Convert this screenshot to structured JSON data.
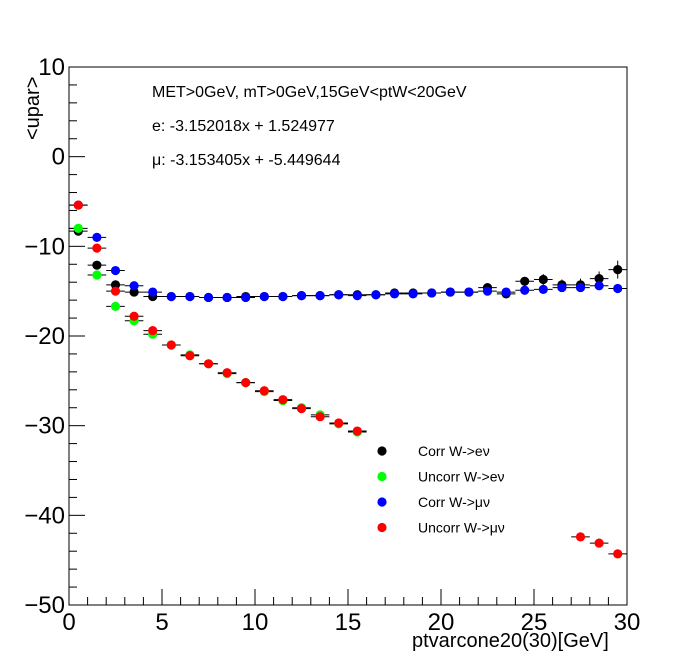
{
  "chart_data": {
    "type": "scatter",
    "title": "",
    "xlabel": "ptvarcone20(30)[GeV]",
    "ylabel": "<upar>",
    "xlim": [
      0,
      30
    ],
    "ylim": [
      -50,
      10
    ],
    "x_ticks": [
      0,
      5,
      10,
      15,
      20,
      25,
      30
    ],
    "y_ticks": [
      -50,
      -40,
      -30,
      -20,
      -10,
      0,
      10
    ],
    "grid": false,
    "legend_position": "lower-right",
    "annotations": [
      "MET>0GeV, mT>0GeV,15GeV<ptW<20GeV",
      "e: -3.152018x + 1.524977",
      "μ: -3.153405x + -5.449644"
    ],
    "series": [
      {
        "name": "Corr W->eν",
        "color": "#000000",
        "x": [
          0.5,
          1.5,
          2.5,
          3.5,
          4.5,
          5.5,
          6.5,
          7.5,
          8.5,
          9.5,
          10.5,
          11.5,
          12.5,
          13.5,
          14.5,
          15.5,
          16.5,
          17.5,
          18.5,
          19.5,
          20.5,
          21.5,
          22.5,
          23.5,
          24.5,
          25.5,
          26.5,
          27.5,
          28.5,
          29.5
        ],
        "y": [
          -8.3,
          -12.1,
          -14.3,
          -15.1,
          -15.6,
          -15.6,
          -15.6,
          -15.7,
          -15.7,
          -15.6,
          -15.6,
          -15.6,
          -15.5,
          -15.5,
          -15.4,
          -15.4,
          -15.4,
          -15.2,
          -15.2,
          -15.2,
          -15.1,
          -15.1,
          -14.6,
          -15.3,
          -13.9,
          -13.7,
          -14.3,
          -14.3,
          -13.6,
          -12.6
        ],
        "yerr": [
          0.3,
          0.3,
          0.3,
          0.3,
          0.3,
          0.2,
          0.2,
          0.2,
          0.2,
          0.2,
          0.2,
          0.2,
          0.2,
          0.2,
          0.2,
          0.2,
          0.2,
          0.2,
          0.2,
          0.2,
          0.3,
          0.3,
          0.4,
          0.4,
          0.5,
          0.6,
          0.6,
          0.7,
          0.8,
          1.0
        ]
      },
      {
        "name": "Uncorr W->eν",
        "color": "#00ff00",
        "x": [
          0.5,
          1.5,
          2.5,
          3.5,
          4.5,
          5.5,
          6.5,
          7.5,
          8.5,
          9.5,
          10.5,
          11.5,
          12.5,
          13.5,
          14.5,
          15.5
        ],
        "y": [
          -8.0,
          -13.2,
          -16.7,
          -18.3,
          -19.8,
          -21.0,
          -22.1,
          -23.1,
          -24.2,
          -25.2,
          -26.2,
          -27.2,
          -28.0,
          -28.8,
          -29.8,
          -30.7
        ],
        "yerr": [
          0.3,
          0.3,
          0.3,
          0.2,
          0.2,
          0.2,
          0.2,
          0.2,
          0.2,
          0.2,
          0.2,
          0.2,
          0.2,
          0.2,
          0.2,
          0.2
        ]
      },
      {
        "name": "Corr W->μν",
        "color": "#0000ff",
        "x": [
          0.5,
          1.5,
          2.5,
          3.5,
          4.5,
          5.5,
          6.5,
          7.5,
          8.5,
          9.5,
          10.5,
          11.5,
          12.5,
          13.5,
          14.5,
          15.5,
          16.5,
          17.5,
          18.5,
          19.5,
          20.5,
          21.5,
          22.5,
          23.5,
          24.5,
          25.5,
          26.5,
          27.5,
          28.5,
          29.5
        ],
        "y": [
          -5.4,
          -9.0,
          -12.7,
          -14.4,
          -15.1,
          -15.6,
          -15.6,
          -15.7,
          -15.7,
          -15.7,
          -15.6,
          -15.6,
          -15.5,
          -15.5,
          -15.4,
          -15.5,
          -15.4,
          -15.3,
          -15.3,
          -15.2,
          -15.1,
          -15.1,
          -15.0,
          -15.1,
          -14.9,
          -14.8,
          -14.6,
          -14.6,
          -14.4,
          -14.7
        ],
        "yerr": [
          0.3,
          0.3,
          0.3,
          0.2,
          0.2,
          0.2,
          0.2,
          0.2,
          0.2,
          0.2,
          0.2,
          0.2,
          0.2,
          0.2,
          0.2,
          0.2,
          0.2,
          0.2,
          0.2,
          0.2,
          0.2,
          0.2,
          0.2,
          0.2,
          0.2,
          0.2,
          0.2,
          0.2,
          0.3,
          0.3
        ]
      },
      {
        "name": "Uncorr W->μν",
        "color": "#ff0000",
        "x": [
          0.5,
          1.5,
          2.5,
          3.5,
          4.5,
          5.5,
          6.5,
          7.5,
          8.5,
          9.5,
          10.5,
          11.5,
          12.5,
          13.5,
          14.5,
          15.5,
          27.5,
          28.5,
          29.5
        ],
        "y": [
          -5.4,
          -10.2,
          -15.0,
          -17.8,
          -19.4,
          -21.0,
          -22.2,
          -23.1,
          -24.1,
          -25.2,
          -26.1,
          -27.1,
          -28.1,
          -29.0,
          -29.7,
          -30.6,
          -42.4,
          -43.1,
          -44.3
        ],
        "yerr": [
          0.3,
          0.3,
          0.3,
          0.2,
          0.2,
          0.2,
          0.2,
          0.2,
          0.2,
          0.2,
          0.2,
          0.2,
          0.2,
          0.2,
          0.2,
          0.2,
          0.3,
          0.3,
          0.3
        ]
      }
    ]
  }
}
